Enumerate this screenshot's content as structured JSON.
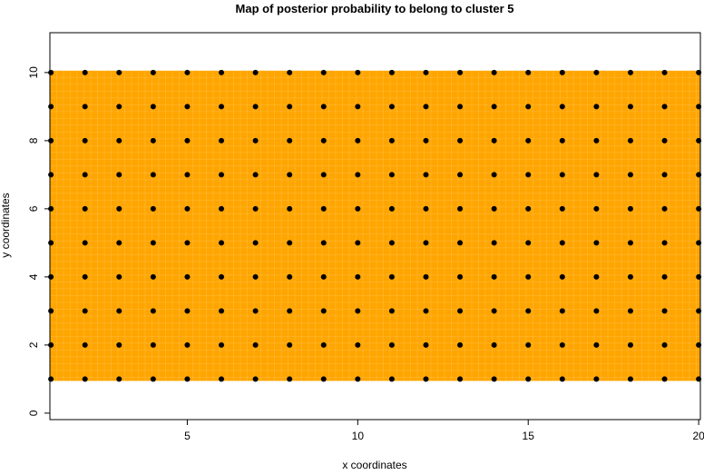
{
  "chart_data": {
    "type": "heatmap",
    "title": "Map of posterior probability to belong to cluster  5",
    "xlabel": "x coordinates",
    "ylabel": "y coordinates",
    "xlim": [
      0.97,
      20.05
    ],
    "ylim": [
      -0.19,
      11.17
    ],
    "x_ticks": [
      5,
      10,
      15,
      20
    ],
    "y_ticks": [
      0,
      2,
      4,
      6,
      8,
      10
    ],
    "grid": false,
    "fill_color": "#FFA500",
    "point_color": "#000000",
    "fill_region": {
      "x": [
        1,
        20
      ],
      "y": [
        1,
        10
      ]
    },
    "points": {
      "x": [
        1,
        2,
        3,
        4,
        5,
        6,
        7,
        8,
        9,
        10,
        11,
        12,
        13,
        14,
        15,
        16,
        17,
        18,
        19,
        20
      ],
      "y": [
        1,
        2,
        3,
        4,
        5,
        6,
        7,
        8,
        9,
        10
      ]
    }
  }
}
